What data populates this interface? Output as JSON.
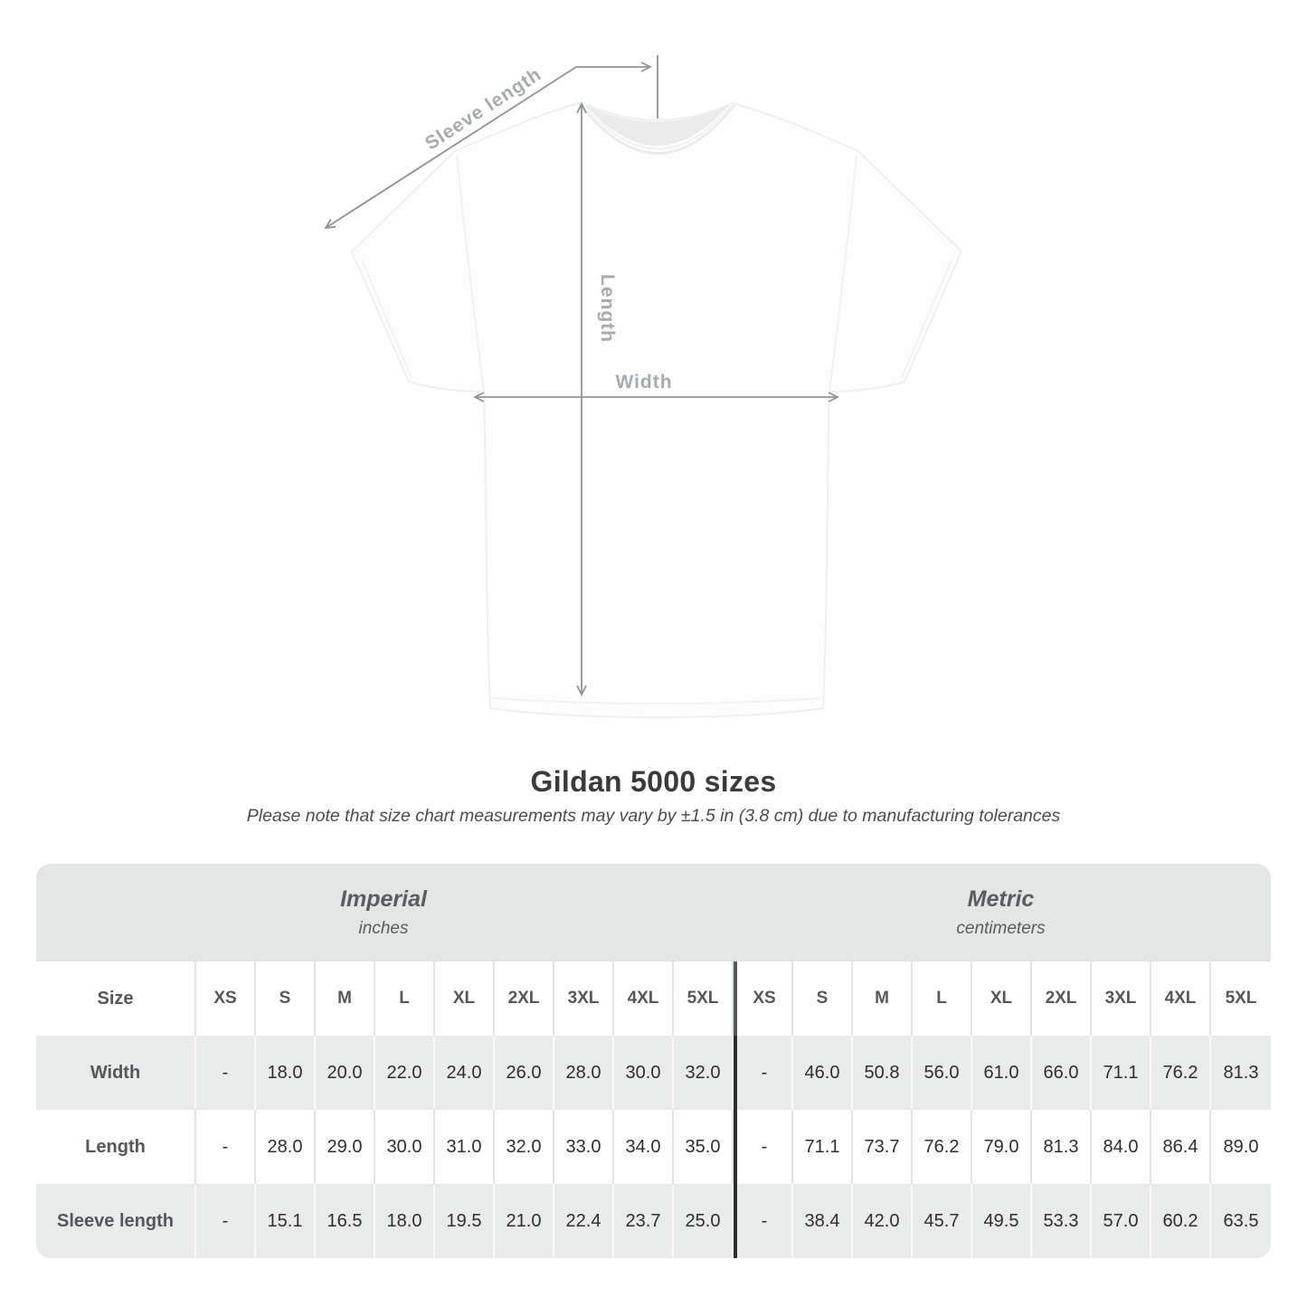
{
  "diagram": {
    "sleeve_label": "Sleeve length",
    "length_label": "Length",
    "width_label": "Width",
    "line_color": "#8f9497",
    "label_color": "#a7abad"
  },
  "title": "Gildan 5000 sizes",
  "subtitle": "Please note that size chart measurements may vary by ±1.5 in (3.8 cm) due to manufacturing tolerances",
  "table": {
    "groups": [
      {
        "label": "Imperial",
        "unit": "inches"
      },
      {
        "label": "Metric",
        "unit": "centimeters"
      }
    ],
    "size_label": "Size",
    "sizes": [
      "XS",
      "S",
      "M",
      "L",
      "XL",
      "2XL",
      "3XL",
      "4XL",
      "5XL"
    ],
    "rows": [
      {
        "label": "Width",
        "imperial": [
          "-",
          "18.0",
          "20.0",
          "22.0",
          "24.0",
          "26.0",
          "28.0",
          "30.0",
          "32.0"
        ],
        "metric": [
          "-",
          "46.0",
          "50.8",
          "56.0",
          "61.0",
          "66.0",
          "71.1",
          "76.2",
          "81.3"
        ]
      },
      {
        "label": "Length",
        "imperial": [
          "-",
          "28.0",
          "29.0",
          "30.0",
          "31.0",
          "32.0",
          "33.0",
          "34.0",
          "35.0"
        ],
        "metric": [
          "-",
          "71.1",
          "73.7",
          "76.2",
          "79.0",
          "81.3",
          "84.0",
          "86.4",
          "89.0"
        ]
      },
      {
        "label": "Sleeve length",
        "imperial": [
          "-",
          "15.1",
          "16.5",
          "18.0",
          "19.5",
          "21.0",
          "22.4",
          "23.7",
          "25.0"
        ],
        "metric": [
          "-",
          "38.4",
          "42.0",
          "45.7",
          "49.5",
          "53.3",
          "57.0",
          "60.2",
          "63.5"
        ]
      }
    ]
  },
  "colors": {
    "header_band": "#e4e5e5",
    "row_gray": "#e9eaea",
    "measure_line": "#8f9497",
    "measure_label": "#a7abad"
  }
}
